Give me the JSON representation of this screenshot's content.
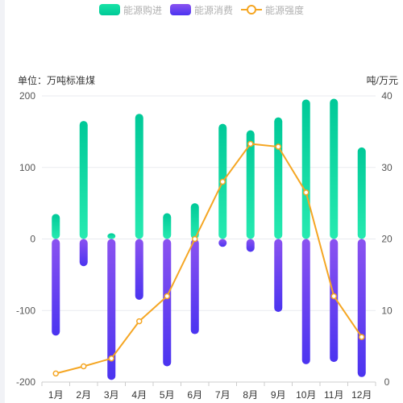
{
  "legend": {
    "series1": "能源购进",
    "series2": "能源消费",
    "series3": "能源强度"
  },
  "units": {
    "left": "单位：万吨标准煤",
    "right": "吨/万元"
  },
  "colors": {
    "purchase_top": "#17e3a6",
    "purchase_bottom": "#00c998",
    "consume_top": "#8a52f0",
    "consume_bottom": "#4b34f0",
    "intensity": "#f5a623",
    "grid": "#e9ebef",
    "axis": "#cccccc",
    "text": "#555555"
  },
  "chart_data": {
    "type": "bar",
    "categories": [
      "1月",
      "2月",
      "3月",
      "4月",
      "5月",
      "6月",
      "7月",
      "8月",
      "9月",
      "10月",
      "11月",
      "12月"
    ],
    "series": [
      {
        "name": "能源购进",
        "type": "bar",
        "values": [
          35,
          165,
          8,
          175,
          36,
          50,
          161,
          152,
          170,
          195,
          196,
          128
        ]
      },
      {
        "name": "能源消费",
        "type": "bar",
        "values": [
          -135,
          -38,
          -197,
          -85,
          -178,
          -133,
          -11,
          -18,
          -102,
          -175,
          -172,
          -193
        ]
      },
      {
        "name": "能源强度",
        "type": "line",
        "axis": "right",
        "values": [
          1.2,
          2.2,
          3.3,
          8.5,
          12.0,
          20.0,
          28.0,
          33.3,
          32.9,
          26.5,
          12.0,
          6.3
        ]
      }
    ],
    "y_left": {
      "min": -200,
      "max": 200,
      "ticks": [
        -200,
        -100,
        0,
        100,
        200
      ]
    },
    "y_right": {
      "min": 0,
      "max": 40,
      "ticks": [
        0,
        10,
        20,
        30,
        40
      ]
    },
    "legend_position": "top-center",
    "grid": true
  }
}
